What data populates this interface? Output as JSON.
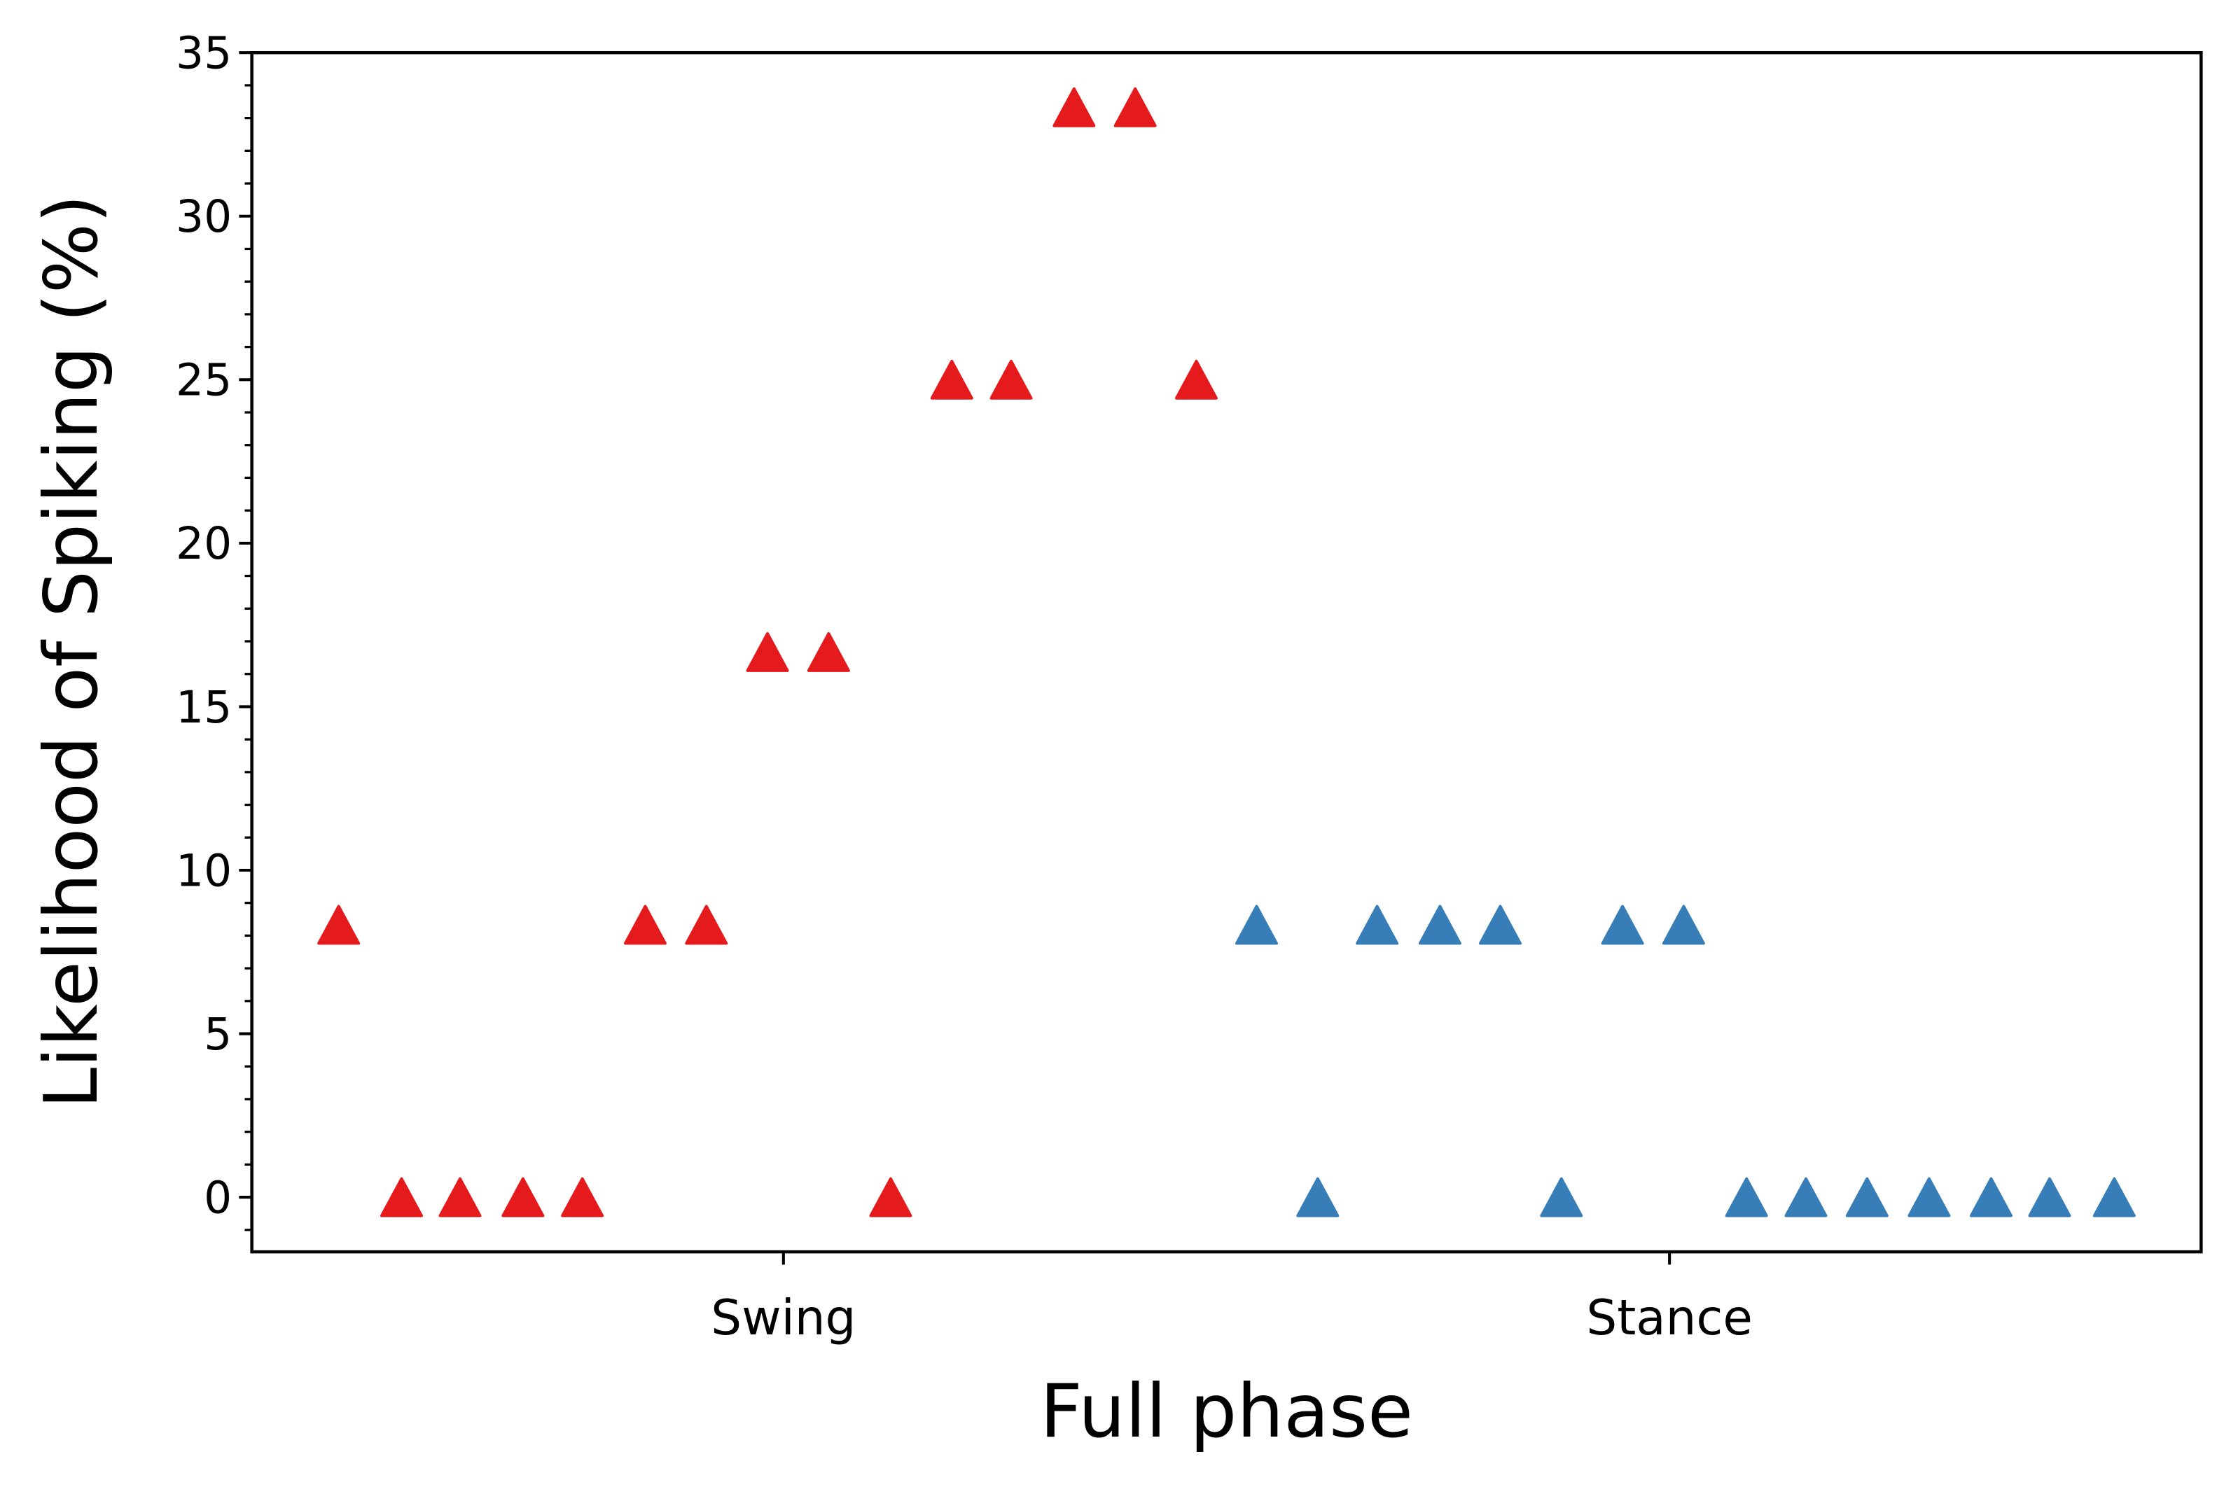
{
  "chart_data": {
    "type": "scatter",
    "xlabel": "Full phase",
    "ylabel": "Likelihood of Spiking (%)",
    "xlim": [
      -0.6,
      1.6
    ],
    "xticks": [
      {
        "value": 0,
        "label": "Swing"
      },
      {
        "value": 1,
        "label": "Stance"
      }
    ],
    "ylim": [
      -1.67,
      35
    ],
    "yticks": [
      0,
      5,
      10,
      15,
      20,
      25,
      30,
      35
    ],
    "yminorticks": [
      -1,
      1,
      2,
      3,
      4,
      6,
      7,
      8,
      9,
      11,
      12,
      13,
      14,
      16,
      17,
      18,
      19,
      21,
      22,
      23,
      24,
      26,
      27,
      28,
      29,
      31,
      32,
      33,
      34
    ],
    "marker": "triangle",
    "series": [
      {
        "color": "#e41a1c",
        "x": [
          -0.502,
          -0.431,
          -0.365,
          -0.294,
          -0.227,
          -0.156,
          -0.087,
          -0.018,
          0.051,
          0.121,
          0.19,
          0.257,
          0.328,
          0.397,
          0.466
        ],
        "values": [
          8.33,
          0,
          0,
          0,
          0,
          8.33,
          8.33,
          16.67,
          16.67,
          0,
          25,
          25,
          33.33,
          33.33,
          25
        ]
      },
      {
        "color": "#377eb8",
        "x": [
          0.534,
          0.603,
          0.67,
          0.741,
          0.809,
          0.878,
          0.947,
          1.016,
          1.087,
          1.154,
          1.223,
          1.293,
          1.363,
          1.429,
          1.502
        ],
        "values": [
          8.33,
          0,
          8.33,
          8.33,
          8.33,
          0,
          8.33,
          8.33,
          0,
          0,
          0,
          0,
          0,
          0,
          0
        ]
      }
    ]
  }
}
